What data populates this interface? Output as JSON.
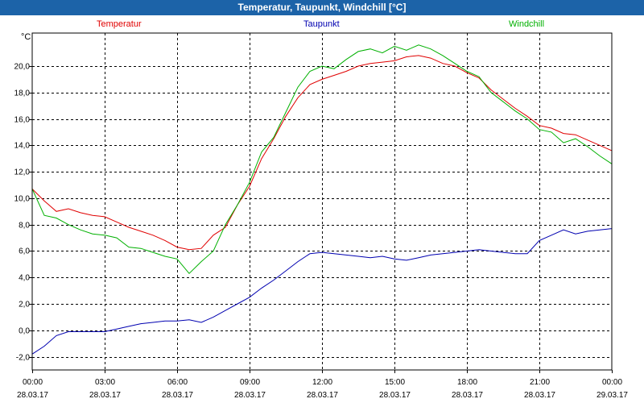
{
  "window": {
    "title": "Temperatur, Taupunkt, Windchill [°C]"
  },
  "chart_data": {
    "type": "line",
    "title": "Temperatur, Taupunkt, Windchill [°C]",
    "ylabel": "°C",
    "xlabel": "",
    "ylim": [
      -3,
      22.5
    ],
    "xlim": [
      0,
      24
    ],
    "grid": true,
    "legend_position": "top",
    "yticks": [
      {
        "value": -2,
        "label": "-2,0"
      },
      {
        "value": 0,
        "label": "0,0"
      },
      {
        "value": 2,
        "label": "2,0"
      },
      {
        "value": 4,
        "label": "4,0"
      },
      {
        "value": 6,
        "label": "6,0"
      },
      {
        "value": 8,
        "label": "8,0"
      },
      {
        "value": 10,
        "label": "10,0"
      },
      {
        "value": 12,
        "label": "12,0"
      },
      {
        "value": 14,
        "label": "14,0"
      },
      {
        "value": 16,
        "label": "16,0"
      },
      {
        "value": 18,
        "label": "18,0"
      },
      {
        "value": 20,
        "label": "20,0"
      }
    ],
    "xticks": [
      {
        "value": 0,
        "time": "00:00",
        "date": "28.03.17"
      },
      {
        "value": 3,
        "time": "03:00",
        "date": "28.03.17"
      },
      {
        "value": 6,
        "time": "06:00",
        "date": "28.03.17"
      },
      {
        "value": 9,
        "time": "09:00",
        "date": "28.03.17"
      },
      {
        "value": 12,
        "time": "12:00",
        "date": "28.03.17"
      },
      {
        "value": 15,
        "time": "15:00",
        "date": "28.03.17"
      },
      {
        "value": 18,
        "time": "18:00",
        "date": "28.03.17"
      },
      {
        "value": 21,
        "time": "21:00",
        "date": "28.03.17"
      },
      {
        "value": 24,
        "time": "00:00",
        "date": "29.03.17"
      }
    ],
    "series": [
      {
        "name": "Temperatur",
        "color": "#e00000",
        "x": [
          0,
          0.5,
          1,
          1.5,
          2,
          2.5,
          3,
          3.5,
          4,
          4.5,
          5,
          5.5,
          6,
          6.5,
          7,
          7.5,
          8,
          8.5,
          9,
          9.5,
          10,
          10.5,
          11,
          11.5,
          12,
          12.5,
          13,
          13.5,
          14,
          14.5,
          15,
          15.5,
          16,
          16.5,
          17,
          17.5,
          18,
          18.5,
          19,
          19.5,
          20,
          20.5,
          21,
          21.5,
          22,
          22.5,
          23,
          23.5,
          24
        ],
        "values": [
          10.7,
          9.8,
          9.0,
          9.2,
          8.9,
          8.7,
          8.6,
          8.2,
          7.8,
          7.5,
          7.2,
          6.8,
          6.3,
          6.1,
          6.2,
          7.2,
          7.8,
          9.5,
          10.9,
          13.0,
          14.5,
          16.2,
          17.6,
          18.6,
          19.0,
          19.3,
          19.6,
          20.0,
          20.2,
          20.3,
          20.4,
          20.7,
          20.8,
          20.6,
          20.2,
          20.0,
          19.5,
          19.1,
          18.2,
          17.5,
          16.8,
          16.2,
          15.5,
          15.3,
          14.9,
          14.8,
          14.4,
          14.0,
          13.6
        ]
      },
      {
        "name": "Taupunkt",
        "color": "#0000b0",
        "x": [
          0,
          0.5,
          1,
          1.5,
          2,
          2.5,
          3,
          3.5,
          4,
          4.5,
          5,
          5.5,
          6,
          6.5,
          7,
          7.5,
          8,
          8.5,
          9,
          9.5,
          10,
          10.5,
          11,
          11.5,
          12,
          12.5,
          13,
          13.5,
          14,
          14.5,
          15,
          15.5,
          16,
          16.5,
          17,
          17.5,
          18,
          18.5,
          19,
          19.5,
          20,
          20.5,
          21,
          21.5,
          22,
          22.5,
          23,
          23.5,
          24
        ],
        "values": [
          -1.8,
          -1.2,
          -0.4,
          -0.1,
          -0.1,
          -0.1,
          -0.1,
          0.1,
          0.3,
          0.5,
          0.6,
          0.7,
          0.7,
          0.8,
          0.6,
          1.0,
          1.5,
          2.0,
          2.5,
          3.2,
          3.8,
          4.5,
          5.2,
          5.8,
          5.9,
          5.8,
          5.7,
          5.6,
          5.5,
          5.6,
          5.4,
          5.3,
          5.5,
          5.7,
          5.8,
          5.9,
          6.0,
          6.1,
          6.0,
          5.9,
          5.8,
          5.8,
          6.8,
          7.2,
          7.6,
          7.3,
          7.5,
          7.6,
          7.7
        ]
      },
      {
        "name": "Windchill",
        "color": "#00b000",
        "x": [
          0,
          0.5,
          1,
          1.5,
          2,
          2.5,
          3,
          3.5,
          4,
          4.5,
          5,
          5.5,
          6,
          6.5,
          7,
          7.5,
          8,
          8.5,
          9,
          9.5,
          10,
          10.5,
          11,
          11.5,
          12,
          12.5,
          13,
          13.5,
          14,
          14.5,
          15,
          15.5,
          16,
          16.5,
          17,
          17.5,
          18,
          18.5,
          19,
          19.5,
          20,
          20.5,
          21,
          21.5,
          22,
          22.5,
          23,
          23.5,
          24
        ],
        "values": [
          10.7,
          8.7,
          8.5,
          8.0,
          7.6,
          7.3,
          7.2,
          7.0,
          6.3,
          6.2,
          5.9,
          5.6,
          5.4,
          4.3,
          5.2,
          6.0,
          8.0,
          9.5,
          11.2,
          13.5,
          14.6,
          16.5,
          18.4,
          19.6,
          20.0,
          19.8,
          20.5,
          21.1,
          21.3,
          21.0,
          21.5,
          21.2,
          21.6,
          21.3,
          20.8,
          20.2,
          19.6,
          19.2,
          18.0,
          17.3,
          16.6,
          16.0,
          15.2,
          15.0,
          14.2,
          14.5,
          13.9,
          13.2,
          12.6
        ]
      }
    ]
  }
}
